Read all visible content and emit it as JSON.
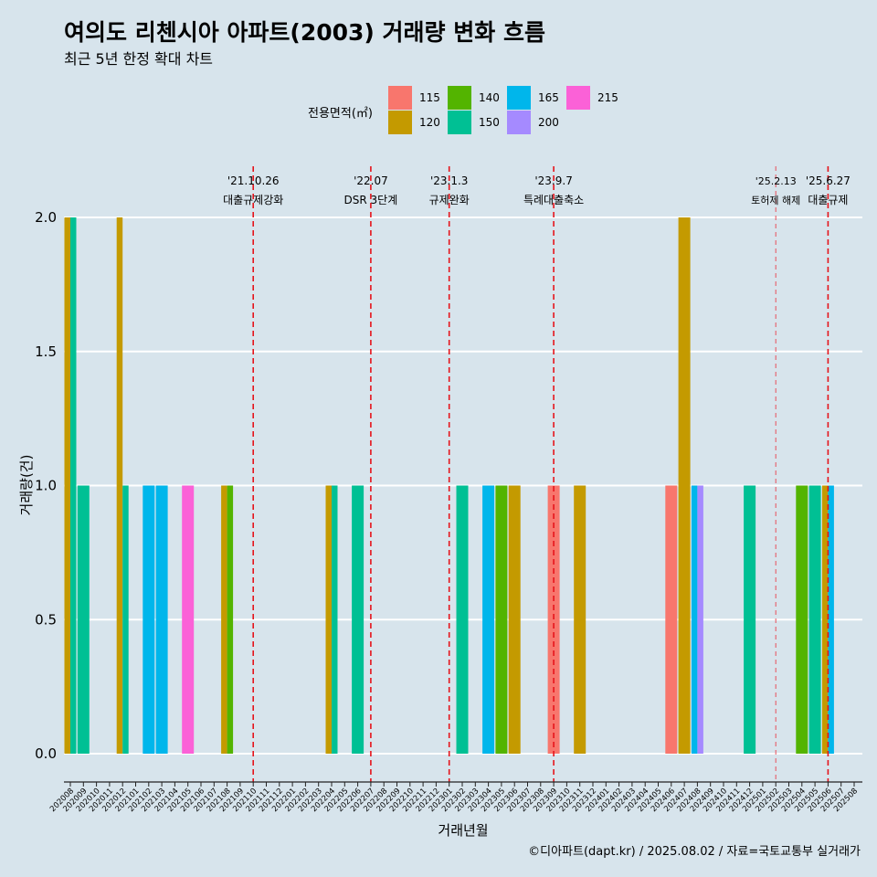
{
  "chart_data": {
    "type": "bar",
    "title": "여의도 리첸시아 아파트(2003) 거래량 변화 흐름",
    "subtitle": "최근 5년 한정 확대 차트",
    "xlabel": "거래년월",
    "ylabel": "거래량(건)",
    "ylim": [
      0,
      2.0
    ],
    "yticks": [
      "0.0",
      "0.5",
      "1.0",
      "1.5",
      "2.0"
    ],
    "legend": {
      "title": "전용면적(㎡)",
      "placement": "top",
      "entries": [
        {
          "name": "115",
          "color": "#f8766d"
        },
        {
          "name": "120",
          "color": "#c49a00"
        },
        {
          "name": "140",
          "color": "#53b400"
        },
        {
          "name": "150",
          "color": "#00c094"
        },
        {
          "name": "165",
          "color": "#00b6eb"
        },
        {
          "name": "200",
          "color": "#a58aff"
        },
        {
          "name": "215",
          "color": "#fb61d7"
        }
      ]
    },
    "categories": [
      "202008",
      "202009",
      "202010",
      "202011",
      "202012",
      "202101",
      "202102",
      "202103",
      "202104",
      "202105",
      "202106",
      "202107",
      "202108",
      "202109",
      "202110",
      "202111",
      "202112",
      "202201",
      "202202",
      "202203",
      "202204",
      "202205",
      "202206",
      "202207",
      "202208",
      "202209",
      "202210",
      "202211",
      "202212",
      "202301",
      "202302",
      "202303",
      "202304",
      "202305",
      "202306",
      "202307",
      "202308",
      "202309",
      "202310",
      "202311",
      "202312",
      "202401",
      "202402",
      "202403",
      "202404",
      "202405",
      "202406",
      "202407",
      "202408",
      "202409",
      "202410",
      "202411",
      "202412",
      "202501",
      "202502",
      "202503",
      "202504",
      "202505",
      "202506",
      "202507",
      "202508"
    ],
    "bars": [
      {
        "month": "202008",
        "area": "120",
        "value": 2
      },
      {
        "month": "202008",
        "area": "150",
        "value": 2
      },
      {
        "month": "202009",
        "area": "150",
        "value": 1
      },
      {
        "month": "202012",
        "area": "120",
        "value": 2
      },
      {
        "month": "202012",
        "area": "150",
        "value": 1
      },
      {
        "month": "202102",
        "area": "165",
        "value": 1
      },
      {
        "month": "202103",
        "area": "165",
        "value": 1
      },
      {
        "month": "202105",
        "area": "215",
        "value": 1
      },
      {
        "month": "202108",
        "area": "120",
        "value": 1
      },
      {
        "month": "202108",
        "area": "140",
        "value": 1
      },
      {
        "month": "202204",
        "area": "120",
        "value": 1
      },
      {
        "month": "202204",
        "area": "150",
        "value": 1
      },
      {
        "month": "202206",
        "area": "150",
        "value": 1
      },
      {
        "month": "202302",
        "area": "150",
        "value": 1
      },
      {
        "month": "202304",
        "area": "165",
        "value": 1
      },
      {
        "month": "202305",
        "area": "140",
        "value": 1
      },
      {
        "month": "202306",
        "area": "120",
        "value": 1
      },
      {
        "month": "202309",
        "area": "115",
        "value": 1
      },
      {
        "month": "202311",
        "area": "120",
        "value": 1
      },
      {
        "month": "202406",
        "area": "115",
        "value": 1
      },
      {
        "month": "202407",
        "area": "120",
        "value": 2
      },
      {
        "month": "202408",
        "area": "165",
        "value": 1
      },
      {
        "month": "202408",
        "area": "200",
        "value": 1
      },
      {
        "month": "202412",
        "area": "150",
        "value": 1
      },
      {
        "month": "202504",
        "area": "140",
        "value": 1
      },
      {
        "month": "202505",
        "area": "150",
        "value": 1
      },
      {
        "month": "202506",
        "area": "120",
        "value": 1
      },
      {
        "month": "202506",
        "area": "165",
        "value": 1
      }
    ],
    "events": [
      {
        "month": "202110",
        "date": "'21.10.26",
        "label": "대출규제강화",
        "style": "strong"
      },
      {
        "month": "202207",
        "date": "'22.07",
        "label": "DSR 3단계",
        "style": "strong"
      },
      {
        "month": "202301",
        "date": "'23.1.3",
        "label": "규제완화",
        "style": "strong"
      },
      {
        "month": "202309",
        "date": "'23.9.7",
        "label": "특례대출축소",
        "style": "strong"
      },
      {
        "month": "202502",
        "date": "'25.2.13",
        "label": "토허제 해제",
        "style": "light"
      },
      {
        "month": "202506",
        "date": "'25.6.27",
        "label": "대출규제",
        "style": "strong"
      }
    ],
    "caption": "©디아파트(dapt.kr) / 2025.08.02 / 자료=국토교통부 실거래가"
  }
}
